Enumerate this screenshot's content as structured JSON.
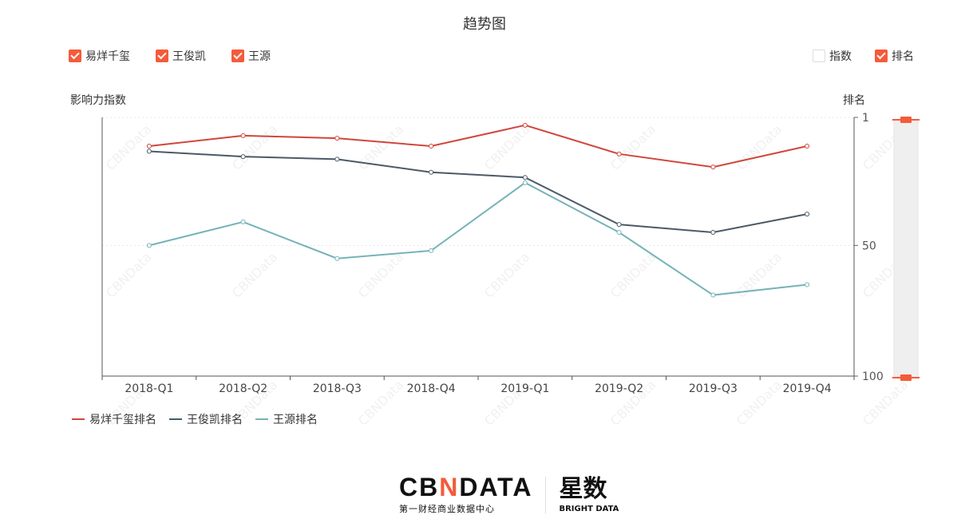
{
  "title": "趋势图",
  "filters": [
    {
      "label": "易烊千玺",
      "checked": true
    },
    {
      "label": "王俊凯",
      "checked": true
    },
    {
      "label": "王源",
      "checked": true
    }
  ],
  "modes": [
    {
      "label": "指数",
      "checked": false
    },
    {
      "label": "排名",
      "checked": true
    }
  ],
  "colors": {
    "accent": "#f45b3a",
    "red": "#d0463c",
    "dark": "#4a5a68",
    "teal": "#76b3b8"
  },
  "watermark": "CBNData",
  "logo": {
    "brand": "CBNDATA",
    "brand_sub": "第一财经商业数据中心",
    "partner": "星数",
    "partner_sub": "BRIGHT DATA"
  },
  "chart_data": {
    "type": "line",
    "title": "趋势图",
    "ylabel_left": "影响力指数",
    "ylabel_right": "排名",
    "y_right_inverted": true,
    "ylim": [
      1,
      100
    ],
    "yticks": [
      1,
      50,
      100
    ],
    "categories": [
      "2018-Q1",
      "2018-Q2",
      "2018-Q3",
      "2018-Q4",
      "2019-Q1",
      "2019-Q2",
      "2019-Q3",
      "2019-Q4"
    ],
    "series": [
      {
        "name": "易烊千玺排名",
        "color": "#d0463c",
        "values": [
          12,
          8,
          9,
          12,
          4,
          15,
          20,
          12
        ]
      },
      {
        "name": "王俊凯排名",
        "color": "#4a5a68",
        "values": [
          14,
          16,
          17,
          22,
          24,
          42,
          45,
          38
        ]
      },
      {
        "name": "王源排名",
        "color": "#76b3b8",
        "values": [
          50,
          41,
          55,
          52,
          26,
          45,
          69,
          65
        ]
      }
    ],
    "legend": "bottom-left",
    "grid": true
  }
}
